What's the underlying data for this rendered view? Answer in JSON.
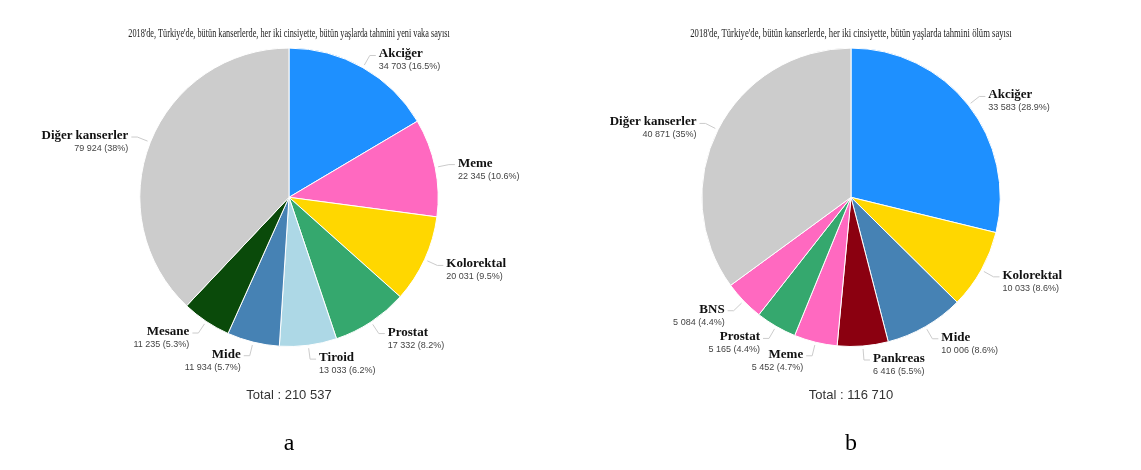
{
  "chart_data": [
    {
      "type": "pie",
      "title": "2018'de, Türkiye'de, bütün kanserlerde, her iki cinsiyette, bütün yaşlarda tahmini yeni vaka sayısı",
      "categories": [
        "Akciğer",
        "Meme",
        "Kolorektal",
        "Prostat",
        "Tiroid",
        "Mide",
        "Mesane",
        "Diğer kanserler"
      ],
      "values": [
        34703,
        22345,
        20031,
        17332,
        13033,
        11934,
        11235,
        79924
      ],
      "colors": [
        "#1e90ff",
        "#ff69c0",
        "#ffd700",
        "#35a86e",
        "#add8e6",
        "#4682b4",
        "#0a4a0a",
        "#cccccc"
      ],
      "value_labels": [
        "34 703 (16.5%)",
        "22 345 (10.6%)",
        "20 031 (9.5%)",
        "17 332 (8.2%)",
        "13 033 (6.2%)",
        "11 934 (5.7%)",
        "11 235 (5.3%)",
        "79 924 (38%)"
      ],
      "annotations": [
        "Total : 210 537",
        "a"
      ]
    },
    {
      "type": "pie",
      "title": "2018'de, Türkiye'de, bütün kanserlerde, her iki cinsiyette, bütün yaşlarda tahmini ölüm sayısı",
      "categories": [
        "Akciğer",
        "Kolorektal",
        "Mide",
        "Pankreas",
        "Meme",
        "Prostat",
        "BNS",
        "Diğer kanserler"
      ],
      "values": [
        33583,
        10033,
        10006,
        6416,
        5452,
        5165,
        5084,
        40871
      ],
      "colors": [
        "#1e90ff",
        "#ffd700",
        "#4682b4",
        "#8b0010",
        "#ff69c0",
        "#35a86e",
        "#ff69c0",
        "#cccccc"
      ],
      "value_labels": [
        "33 583 (28.9%)",
        "10 033 (8.6%)",
        "10 006 (8.6%)",
        "6 416 (5.5%)",
        "5 452 (4.7%)",
        "5 165 (4.4%)",
        "5 084 (4.4%)",
        "40 871 (35%)"
      ],
      "annotations": [
        "Total : 116 710",
        "b"
      ]
    }
  ]
}
